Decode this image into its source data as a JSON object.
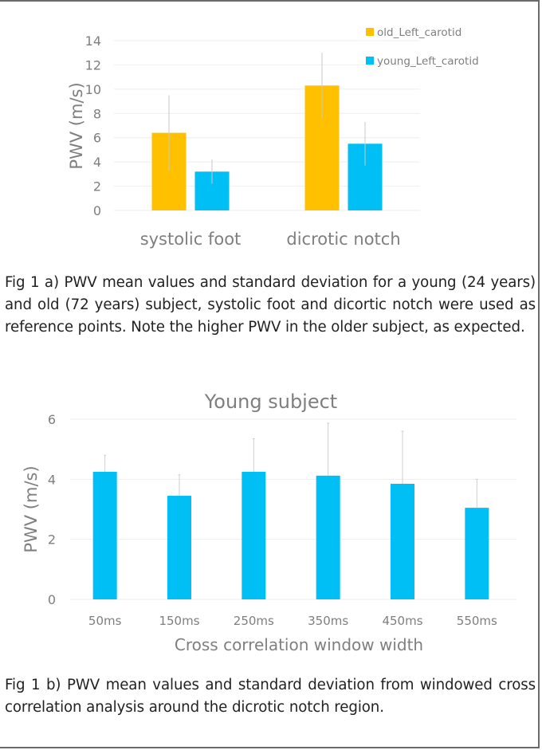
{
  "chart_data": [
    {
      "type": "bar",
      "categories": [
        "systolic foot",
        "dicrotic notch"
      ],
      "series": [
        {
          "name": "old_Left_carotid",
          "color": "#FFC000",
          "values": [
            6.4,
            10.3
          ],
          "std": [
            3.1,
            2.7
          ]
        },
        {
          "name": "young_Left_carotid",
          "color": "#00BFF5",
          "values": [
            3.2,
            5.5
          ],
          "std": [
            1.0,
            1.8
          ]
        }
      ],
      "title": "",
      "xlabel": "",
      "ylabel": "PWV (m/s)",
      "ylim": [
        0,
        14
      ],
      "yticks": [
        "0",
        "2",
        "4",
        "6",
        "8",
        "10",
        "12",
        "14"
      ],
      "grid": true,
      "legend": "top-right"
    },
    {
      "type": "bar",
      "categories": [
        "50ms",
        "150ms",
        "250ms",
        "350ms",
        "450ms",
        "550ms"
      ],
      "series": [
        {
          "name": "Young subject",
          "color": "#00BFF5",
          "values": [
            4.25,
            3.45,
            4.25,
            4.12,
            3.85,
            3.05
          ],
          "std": [
            0.55,
            0.7,
            1.1,
            1.75,
            1.75,
            0.95
          ]
        }
      ],
      "title": "Young subject",
      "xlabel": "Cross correlation window width",
      "ylabel": "PWV (m/s)",
      "ylim": [
        0,
        6
      ],
      "yticks": [
        "0",
        "2",
        "4",
        "6"
      ],
      "grid": true,
      "legend": "none"
    }
  ],
  "captions": {
    "fig1a": "Fig 1 a) PWV mean values and standard deviation for a young (24 years) and old (72 years) subject, systolic foot and dicortic notch were used as reference points. Note the higher PWV in the older subject, as expected.",
    "fig1b": "Fig 1 b) PWV mean values and standard deviation from windowed cross correlation analysis around the dicrotic notch region."
  }
}
